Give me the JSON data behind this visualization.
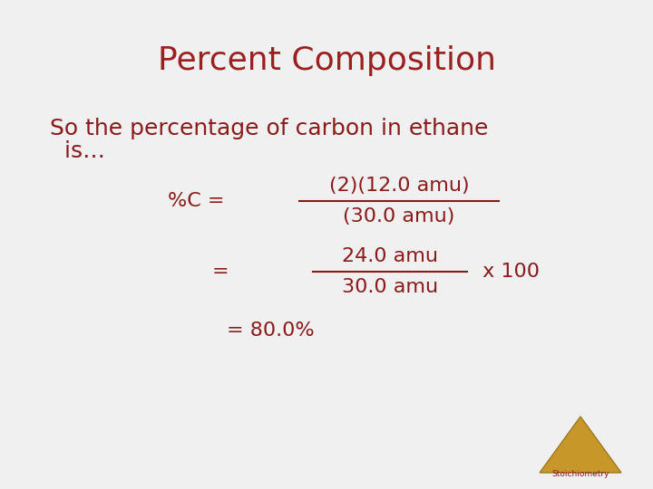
{
  "title": "Percent Composition",
  "title_color": "#9B2020",
  "title_fontsize": 26,
  "subtitle_line1": "So the percentage of carbon in ethane",
  "subtitle_line2": "  is…",
  "subtitle_color": "#8B1A1A",
  "subtitle_fontsize": 18,
  "bg_color": "#F0F0F0",
  "text_color": "#8B1A1A",
  "fraction1_numerator": "(2)(12.0 amu)",
  "fraction1_denominator": "(30.0 amu)",
  "fraction1_prefix": "%C = ",
  "fraction2_numerator": "24.0 amu",
  "fraction2_denominator": "30.0 amu",
  "fraction2_prefix": "= ",
  "fraction2_suffix": " x 100",
  "result": "= 80.0%",
  "stoich_label": "Stoichiometry",
  "stoich_color": "#8B1A1A",
  "triangle_color1": "#C8972A",
  "triangle_color2": "#A07820",
  "equation_fontsize": 16
}
